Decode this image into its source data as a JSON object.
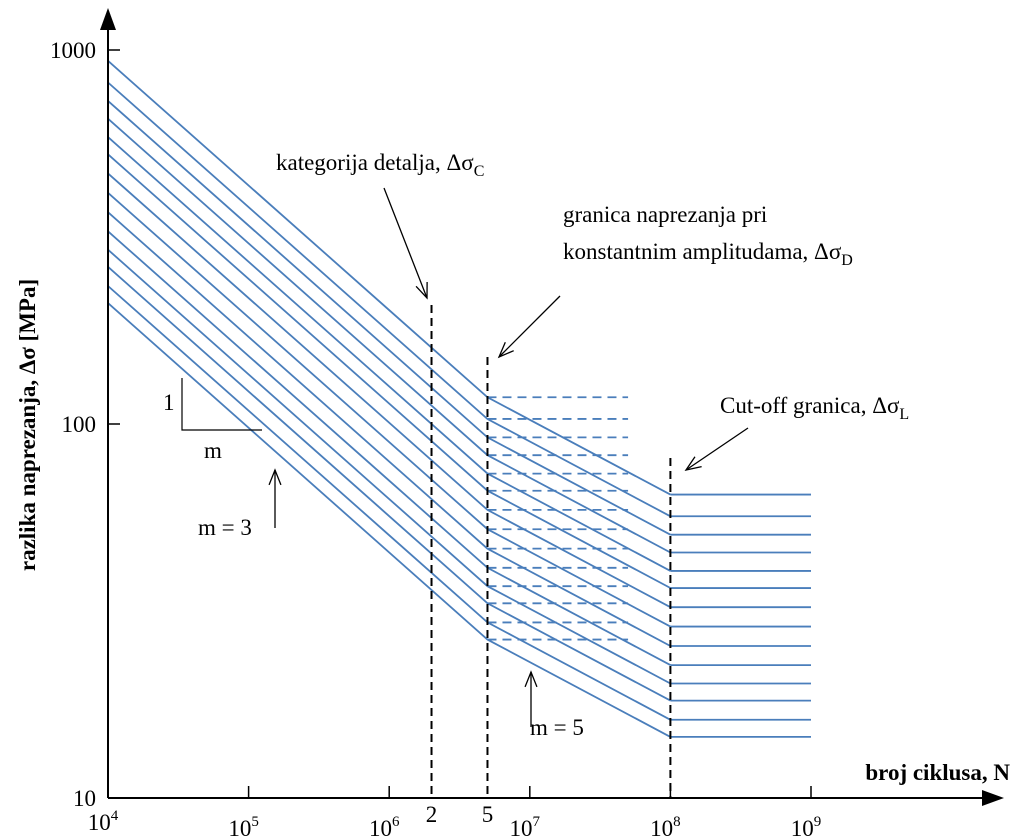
{
  "chart_data": {
    "type": "line",
    "x_scale": "log",
    "y_scale": "log",
    "xlim": [
      10000,
      4000000000
    ],
    "ylim": [
      10,
      1000
    ],
    "xlabel": "broj ciklusa, N",
    "ylabel": "razlika naprezanja, Δσ [MPa]",
    "x_ticks": [
      {
        "value": 10000,
        "base": "10",
        "exp": "4"
      },
      {
        "value": 100000,
        "base": "10",
        "exp": "5"
      },
      {
        "value": 1000000,
        "base": "10",
        "exp": "6"
      },
      {
        "value": 10000000,
        "base": "10",
        "exp": "7"
      },
      {
        "value": 100000000,
        "base": "10",
        "exp": "8"
      },
      {
        "value": 1000000000,
        "base": "10",
        "exp": "9"
      }
    ],
    "x_extra_ticks": [
      {
        "value": 2000000,
        "label": "2"
      },
      {
        "value": 5000000,
        "label": "5"
      }
    ],
    "y_ticks": [
      {
        "value": 10,
        "label": "10"
      },
      {
        "value": 100,
        "label": "100"
      },
      {
        "value": 1000,
        "label": "1000"
      }
    ],
    "grid": false,
    "knee_points": {
      "n_c": 2000000,
      "n_d": 5000000,
      "n_l": 100000000,
      "cutoff_end": 1000000000,
      "dashed_end": 50000000
    },
    "slopes": {
      "m1": 3,
      "m2": 5
    },
    "detail_categories": [
      160,
      140,
      125,
      112,
      100,
      90,
      80,
      71,
      63,
      56,
      50,
      45,
      40,
      36
    ],
    "line_color": "#4a7ebb",
    "annotations": {
      "detail_category": {
        "text": "kategorija detalja, Δσ",
        "sub": "C"
      },
      "cafl_line1": "granica naprezanja pri",
      "cafl_line2": {
        "text": "konstantnim amplitudama, Δσ",
        "sub": "D"
      },
      "cutoff": {
        "text": "Cut-off granica, Δσ",
        "sub": "L"
      },
      "slope_one": "1",
      "slope_m": "m",
      "m3": "m = 3",
      "m5": "m = 5"
    }
  }
}
